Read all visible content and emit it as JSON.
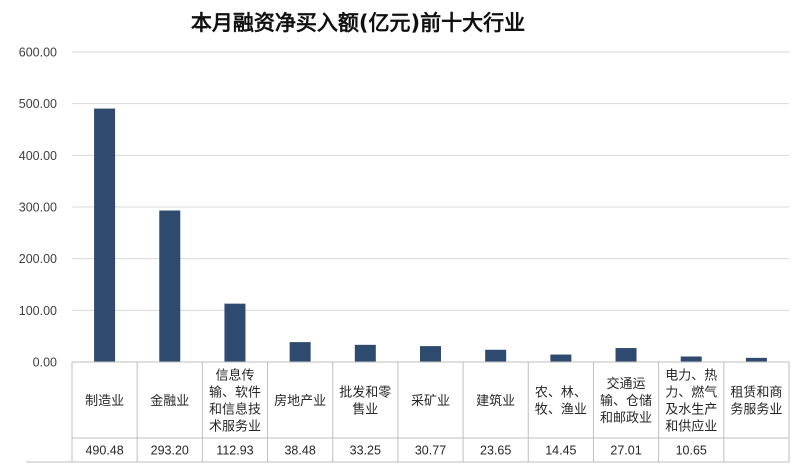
{
  "chart_data": {
    "type": "bar",
    "title": "本月融资净买入额(亿元)前十大行业",
    "xlabel": "",
    "ylabel": "",
    "ylim": [
      0,
      600
    ],
    "yticks": [
      "0.00",
      "100.00",
      "200.00",
      "300.00",
      "400.00",
      "500.00",
      "600.00"
    ],
    "grid": true,
    "legend": "none",
    "bar_color": "#2e4a6e",
    "categories": [
      [
        "制造业"
      ],
      [
        "金融业"
      ],
      [
        "信息传",
        "输、软件",
        "和信息技",
        "术服务业"
      ],
      [
        "房地产业"
      ],
      [
        "批发和零",
        "售业"
      ],
      [
        "采矿业"
      ],
      [
        "建筑业"
      ],
      [
        "农、林、",
        "牧、渔业"
      ],
      [
        "交通运",
        "输、仓储",
        "和邮政业"
      ],
      [
        "电力、热",
        "力、燃气",
        "及水生产",
        "和供应业"
      ],
      [
        "租赁和商",
        "务服务业"
      ]
    ],
    "values": [
      490.48,
      293.2,
      112.93,
      38.48,
      33.25,
      30.77,
      23.65,
      14.45,
      27.01,
      10.65,
      8.0
    ],
    "value_labels": [
      "490.48",
      "293.20",
      "112.93",
      "38.48",
      "33.25",
      "30.77",
      "23.65",
      "14.45",
      "27.01",
      "10.65",
      ""
    ]
  }
}
